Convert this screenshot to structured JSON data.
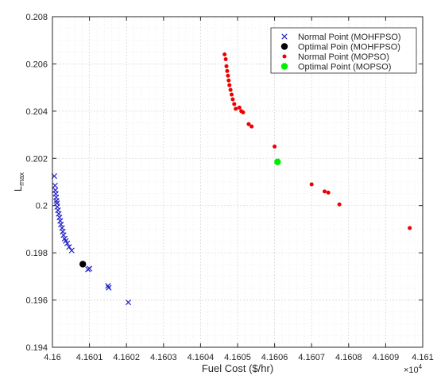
{
  "chart_data": {
    "type": "scatter",
    "title": "",
    "xlabel": "Fuel Cost ($/hr)",
    "ylabel_main": "L",
    "ylabel_sub": "max",
    "x_multiplier": "×10",
    "x_multiplier_exp": "4",
    "xlim": [
      41600,
      41610
    ],
    "ylim": [
      0.194,
      0.208
    ],
    "xticks": [
      41600,
      41601,
      41602,
      41603,
      41604,
      41605,
      41606,
      41607,
      41608,
      41609,
      41610
    ],
    "xtick_labels": [
      "4.16",
      "4.1601",
      "4.1602",
      "4.1603",
      "4.1604",
      "4.1605",
      "4.1606",
      "4.1607",
      "4.1608",
      "4.1609",
      "4.161"
    ],
    "yticks": [
      0.194,
      0.196,
      0.198,
      0.2,
      0.202,
      0.204,
      0.206,
      0.208
    ],
    "ytick_labels": [
      "0.194",
      "0.196",
      "0.198",
      "0.2",
      "0.202",
      "0.204",
      "0.206",
      "0.208"
    ],
    "grid": "on (major and minor, dotted)",
    "legend_position": "top-right",
    "series": [
      {
        "name": "Normal Point (MOHFPSO)",
        "marker": "x",
        "color": "#2323c8",
        "points": [
          [
            41600.05,
            0.20125
          ],
          [
            41600.07,
            0.20085
          ],
          [
            41600.08,
            0.20065
          ],
          [
            41600.09,
            0.2005
          ],
          [
            41600.1,
            0.20035
          ],
          [
            41600.11,
            0.2002
          ],
          [
            41600.12,
            0.2001
          ],
          [
            41600.13,
            0.19995
          ],
          [
            41600.15,
            0.1998
          ],
          [
            41600.17,
            0.19965
          ],
          [
            41600.19,
            0.1995
          ],
          [
            41600.21,
            0.19935
          ],
          [
            41600.23,
            0.1992
          ],
          [
            41600.26,
            0.19905
          ],
          [
            41600.28,
            0.1989
          ],
          [
            41600.3,
            0.19875
          ],
          [
            41600.33,
            0.1986
          ],
          [
            41600.36,
            0.1985
          ],
          [
            41600.4,
            0.1984
          ],
          [
            41600.45,
            0.19825
          ],
          [
            41600.52,
            0.1981
          ],
          [
            41600.96,
            0.1973
          ],
          [
            41601.0,
            0.19733
          ],
          [
            41601.5,
            0.1966
          ],
          [
            41601.52,
            0.19652
          ],
          [
            41602.05,
            0.1959
          ]
        ]
      },
      {
        "name": "Optimal Poin (MOHFPSO)",
        "marker": "filled-circle",
        "color": "#000000",
        "points": [
          [
            41600.82,
            0.19752
          ]
        ]
      },
      {
        "name": "Normal Point (MOPSO)",
        "marker": "dot",
        "color": "#ee0000",
        "points": [
          [
            41604.65,
            0.2064
          ],
          [
            41604.68,
            0.2062
          ],
          [
            41604.7,
            0.2059
          ],
          [
            41604.72,
            0.2057
          ],
          [
            41604.74,
            0.2055
          ],
          [
            41604.76,
            0.2053
          ],
          [
            41604.78,
            0.2051
          ],
          [
            41604.81,
            0.2049
          ],
          [
            41604.84,
            0.2047
          ],
          [
            41604.87,
            0.2045
          ],
          [
            41604.91,
            0.2043
          ],
          [
            41604.95,
            0.2041
          ],
          [
            41605.05,
            0.20415
          ],
          [
            41605.1,
            0.204
          ],
          [
            41605.15,
            0.20395
          ],
          [
            41605.3,
            0.20345
          ],
          [
            41605.38,
            0.20335
          ],
          [
            41606.0,
            0.2025
          ],
          [
            41607.0,
            0.2009
          ],
          [
            41607.35,
            0.2006
          ],
          [
            41607.45,
            0.20055
          ],
          [
            41607.75,
            0.20005
          ],
          [
            41609.65,
            0.19905
          ]
        ]
      },
      {
        "name": "Optimal Point (MOPSO)",
        "marker": "filled-circle",
        "color": "#00ee00",
        "points": [
          [
            41606.08,
            0.20185
          ]
        ]
      }
    ],
    "colors": {
      "axis": "#262626",
      "major_grid": "#d9d9d9",
      "minor_grid": "#e6e6e6",
      "mohfpso_normal": "#2323c8",
      "mohfpso_optimal": "#000000",
      "mopso_normal": "#ee0000",
      "mopso_optimal": "#00ee00"
    }
  }
}
